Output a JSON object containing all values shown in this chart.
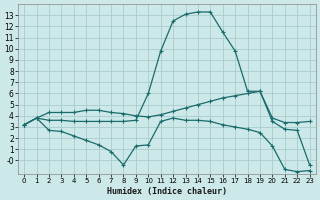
{
  "xlabel": "Humidex (Indice chaleur)",
  "bg_color": "#cce8e8",
  "grid_color": "#aacccc",
  "line_color": "#1a6b6b",
  "xlim": [
    -0.5,
    23.5
  ],
  "ylim": [
    -1.2,
    14.0
  ],
  "xticks": [
    0,
    1,
    2,
    3,
    4,
    5,
    6,
    7,
    8,
    9,
    10,
    11,
    12,
    13,
    14,
    15,
    16,
    17,
    18,
    19,
    20,
    21,
    22,
    23
  ],
  "yticks": [
    0,
    1,
    2,
    3,
    4,
    5,
    6,
    7,
    8,
    9,
    10,
    11,
    12,
    13
  ],
  "line1_x": [
    0,
    1,
    2,
    3,
    4,
    5,
    6,
    7,
    8,
    9,
    10,
    11,
    12,
    13,
    14,
    15,
    16,
    17,
    18,
    19,
    20,
    21,
    22,
    23
  ],
  "line1_y": [
    3.2,
    3.8,
    3.6,
    3.6,
    3.5,
    3.5,
    3.5,
    3.5,
    3.5,
    3.6,
    6.0,
    9.8,
    12.5,
    13.1,
    13.3,
    13.3,
    11.5,
    9.8,
    6.2,
    6.2,
    3.5,
    2.8,
    2.7,
    -0.4
  ],
  "line2_x": [
    0,
    1,
    2,
    3,
    4,
    5,
    6,
    7,
    8,
    9,
    10,
    11,
    12,
    13,
    14,
    15,
    16,
    17,
    18,
    19,
    20,
    21,
    22,
    23
  ],
  "line2_y": [
    3.2,
    3.8,
    4.3,
    4.3,
    4.3,
    4.5,
    4.5,
    4.3,
    4.2,
    4.0,
    3.9,
    4.1,
    4.4,
    4.7,
    5.0,
    5.3,
    5.6,
    5.8,
    6.0,
    6.2,
    3.8,
    3.4,
    3.4,
    3.5
  ],
  "line3_x": [
    0,
    1,
    2,
    3,
    4,
    5,
    6,
    7,
    8,
    9,
    10,
    11,
    12,
    13,
    14,
    15,
    16,
    17,
    18,
    19,
    20,
    21,
    22,
    23
  ],
  "line3_y": [
    3.2,
    3.8,
    2.7,
    2.6,
    2.2,
    1.8,
    1.4,
    0.8,
    -0.4,
    1.3,
    1.4,
    3.5,
    3.8,
    3.6,
    3.6,
    3.5,
    3.2,
    3.0,
    2.8,
    2.5,
    1.3,
    -0.8,
    -1.0,
    -0.9
  ],
  "marker": "+",
  "markersize": 3.5,
  "linewidth": 0.9
}
